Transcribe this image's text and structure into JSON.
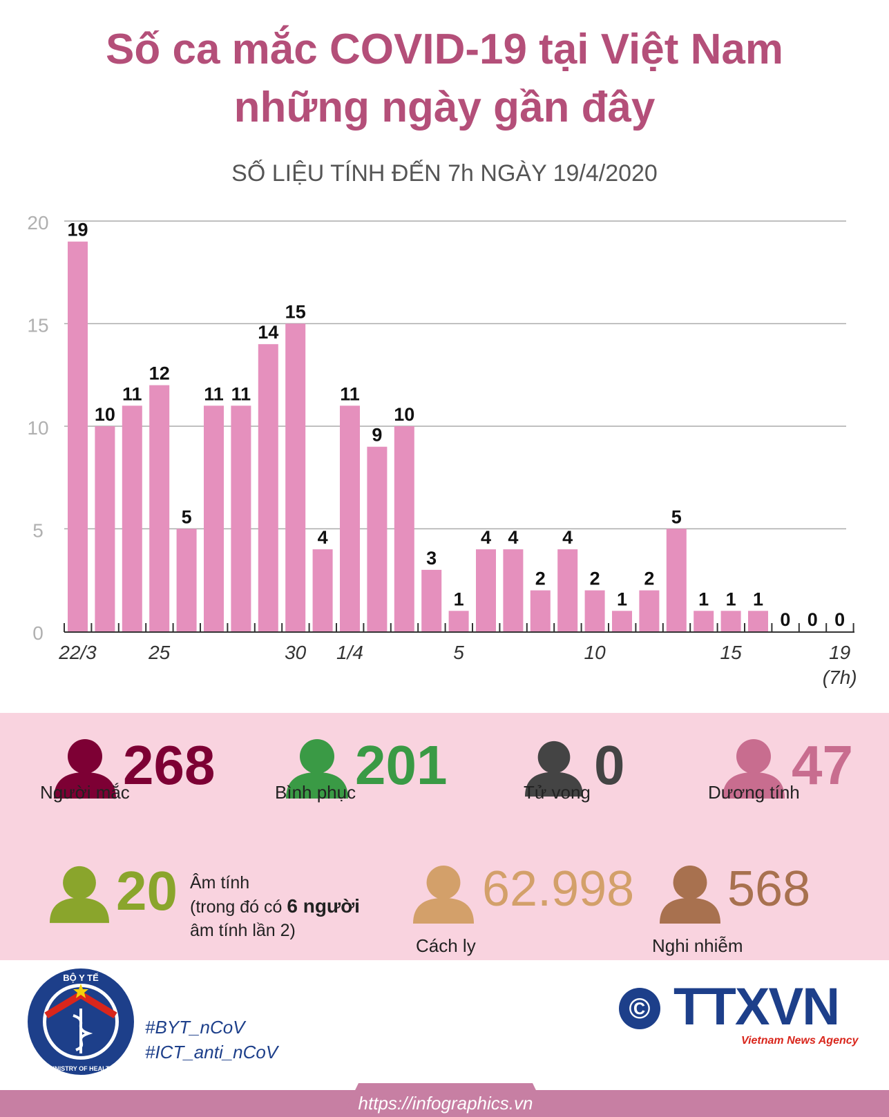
{
  "header": {
    "title_line1": "Số ca mắc COVID-19 tại Việt Nam",
    "title_line2": "những ngày gần đây",
    "subtitle": "SỐ LIỆU TÍNH ĐẾN 7h NGÀY 19/4/2020"
  },
  "chart_data": {
    "type": "bar",
    "title": "",
    "xlabel": "",
    "ylabel": "",
    "ylim": [
      0,
      20
    ],
    "yticks": [
      0,
      5,
      10,
      15,
      20
    ],
    "grid": true,
    "values": [
      19,
      10,
      11,
      12,
      5,
      11,
      11,
      14,
      15,
      4,
      11,
      9,
      10,
      3,
      1,
      4,
      4,
      2,
      4,
      2,
      1,
      2,
      5,
      1,
      1,
      1,
      0,
      0,
      0
    ],
    "tick_labels": [
      {
        "index": 0,
        "text": "22/3"
      },
      {
        "index": 3,
        "text": "25"
      },
      {
        "index": 8,
        "text": "30"
      },
      {
        "index": 10,
        "text": "1/4"
      },
      {
        "index": 14,
        "text": "5"
      },
      {
        "index": 19,
        "text": "10"
      },
      {
        "index": 24,
        "text": "15"
      },
      {
        "index": 28,
        "text": "19",
        "text2": "(7h)"
      }
    ],
    "bar_color": "#e590bd"
  },
  "stats": {
    "infected": {
      "value": "268",
      "label": "Người mắc",
      "color": "#7d0034"
    },
    "recovered": {
      "value": "201",
      "label": "Bình phục",
      "color": "#3a9a45"
    },
    "deaths": {
      "value": "0",
      "label": "Tử vong",
      "color": "#444444"
    },
    "positive": {
      "value": "47",
      "label": "Dương tính",
      "color": "#c86d8f"
    },
    "negative": {
      "value": "20",
      "label_line1": "Âm tính",
      "label_line2_a": "(trong đó có ",
      "label_line2_b": "6 người",
      "label_line3": "âm tính lần 2)",
      "color": "#8aa52c"
    },
    "quarantine": {
      "value": "62.998",
      "label": "Cách ly",
      "color": "#d3a06a"
    },
    "suspected": {
      "value": "568",
      "label": "Nghi nhiễm",
      "color": "#a8714f"
    }
  },
  "footer": {
    "moh_logo_top": "BỘ Y TẾ",
    "moh_logo_bottom": "MINISTRY OF HEALTH",
    "hashtag1": "#BYT_nCoV",
    "hashtag2": "#ICT_anti_nCoV",
    "copyright": "©",
    "agency_logo": "TTXVN",
    "agency_name": "Vietnam News Agency",
    "url": "https://infographics.vn"
  }
}
